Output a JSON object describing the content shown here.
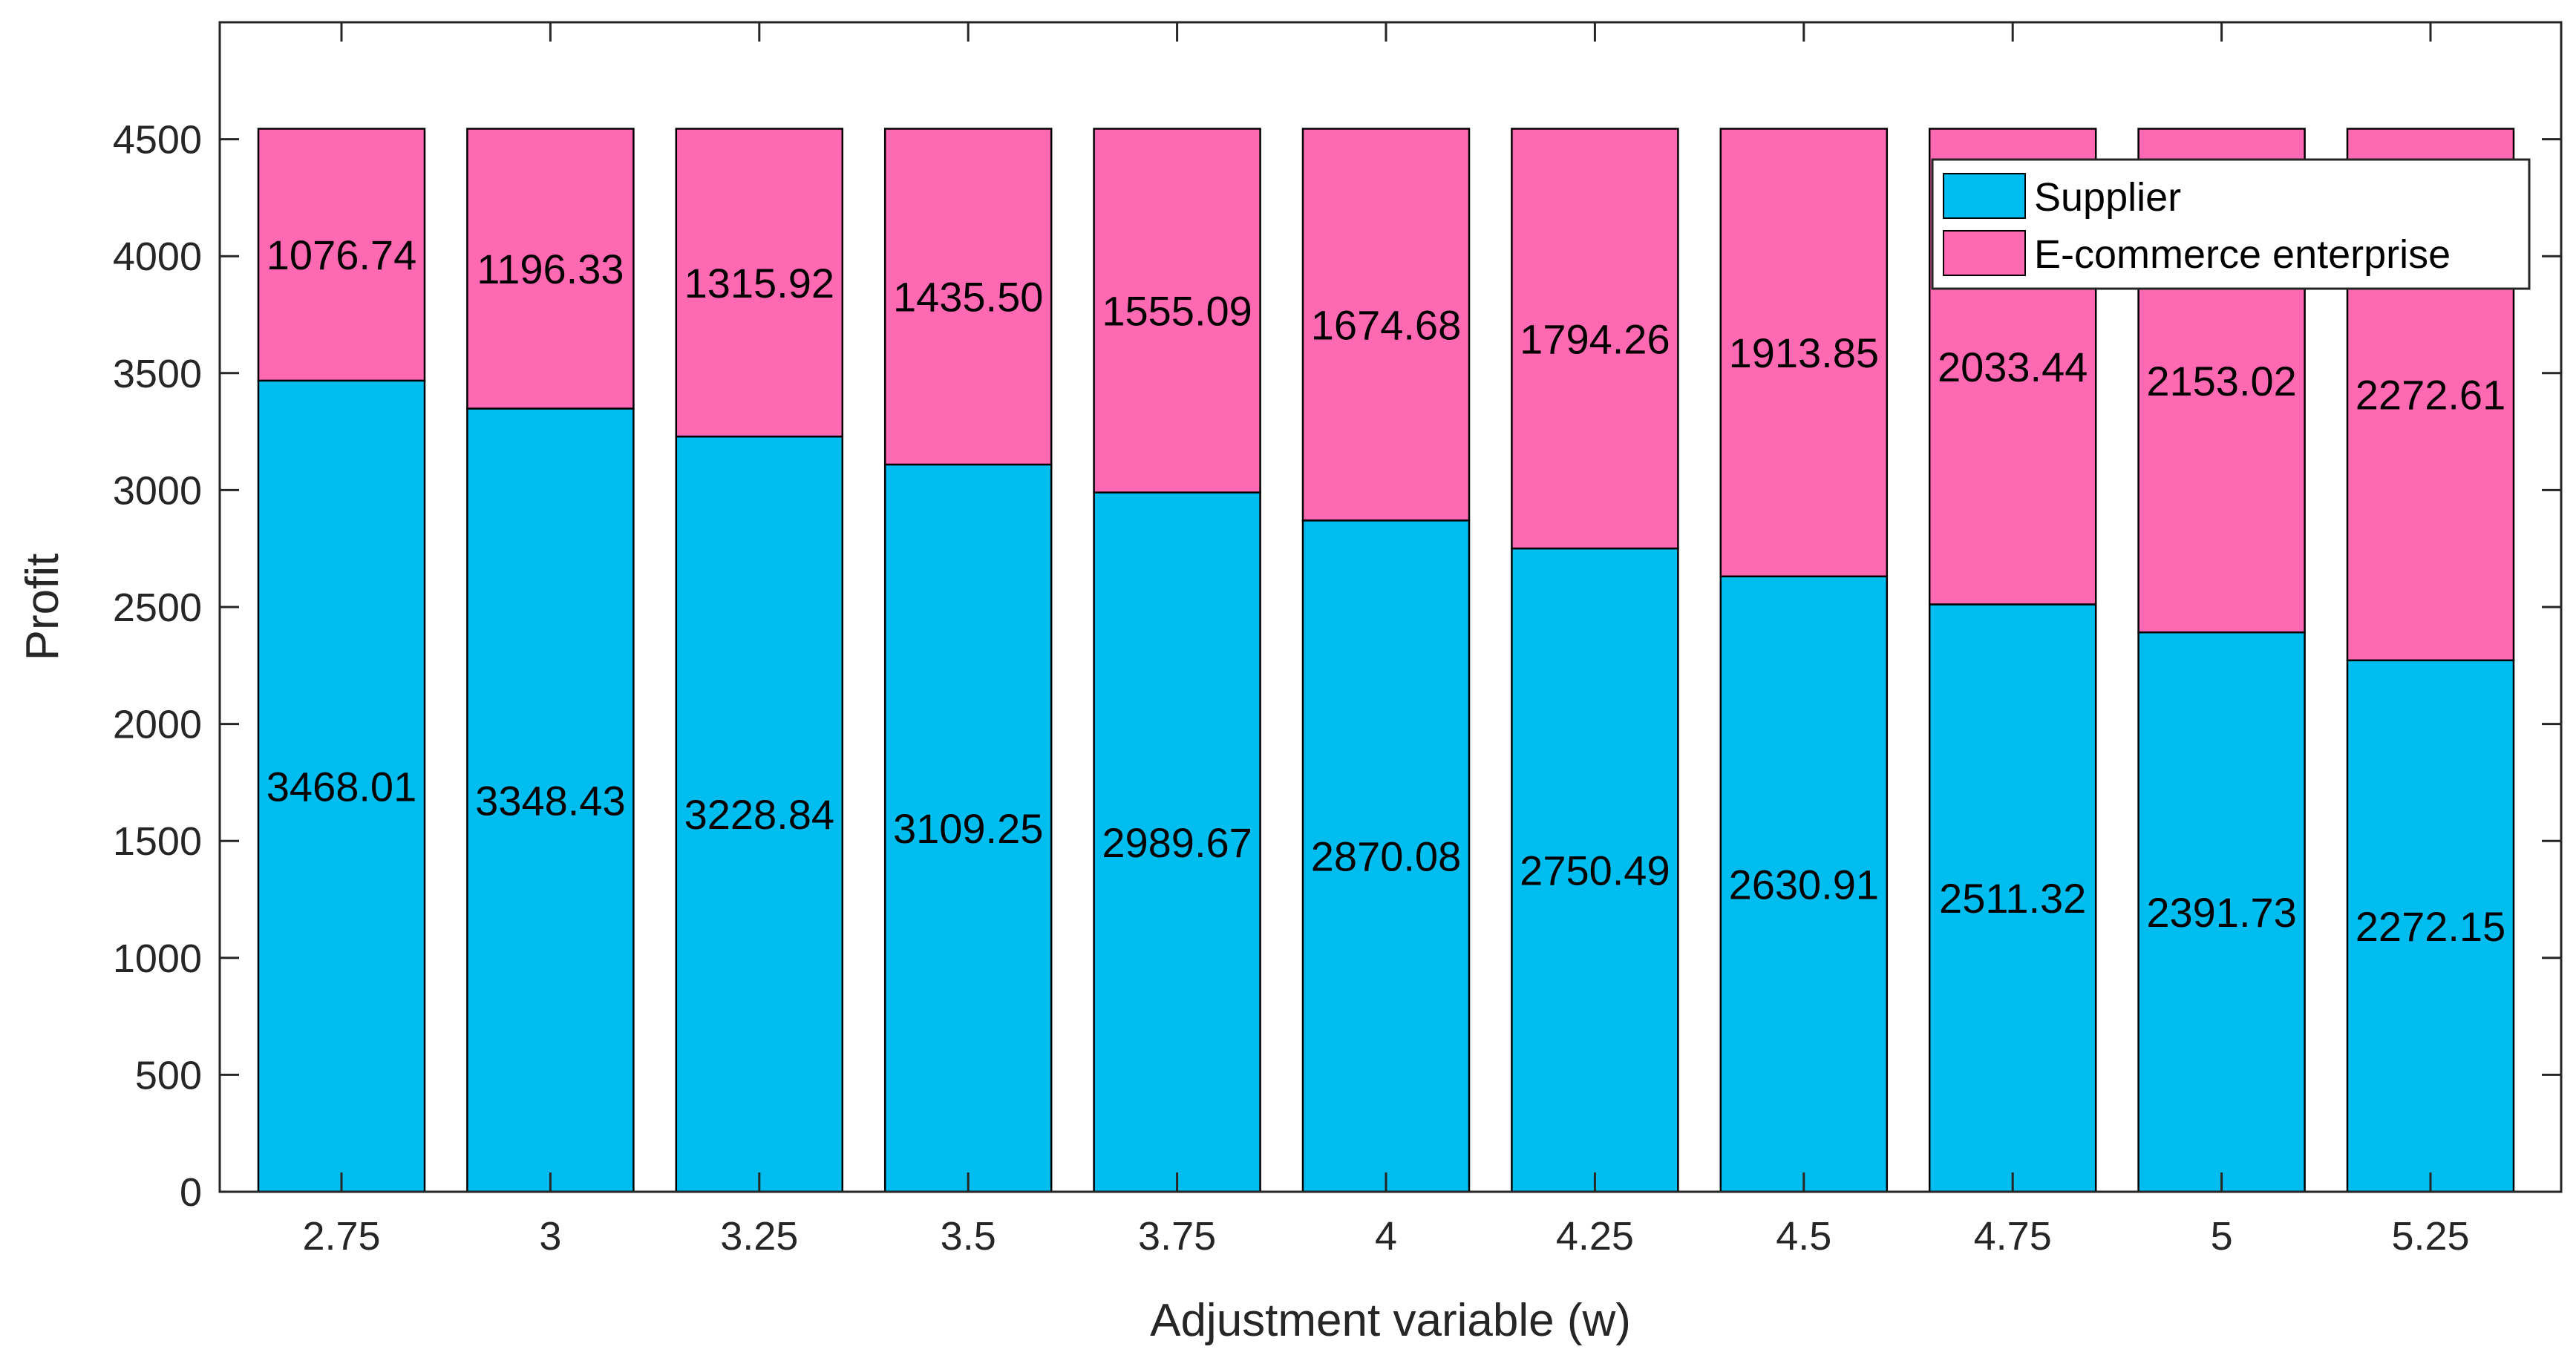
{
  "chart_data": {
    "type": "bar",
    "stacked": true,
    "title": "",
    "xlabel": "Adjustment variable (w)",
    "ylabel": "Profit",
    "categories": [
      "2.75",
      "3",
      "3.25",
      "3.5",
      "3.75",
      "4",
      "4.25",
      "4.5",
      "4.75",
      "5",
      "5.25"
    ],
    "ylim": [
      0,
      5000
    ],
    "yticks": [
      "0",
      "500",
      "1000",
      "1500",
      "2000",
      "2500",
      "3000",
      "3500",
      "4000",
      "4500"
    ],
    "series": [
      {
        "name": "Supplier",
        "color": "#00BDEF",
        "values": [
          3468.01,
          3348.43,
          3228.84,
          3109.25,
          2989.67,
          2870.08,
          2750.49,
          2630.91,
          2511.32,
          2391.73,
          2272.15
        ],
        "labels": [
          "3468.01",
          "3348.43",
          "3228.84",
          "3109.25",
          "2989.67",
          "2870.08",
          "2750.49",
          "2630.91",
          "2511.32",
          "2391.73",
          "2272.15"
        ]
      },
      {
        "name": "E-commerce enterprise",
        "color": "#FF69B4",
        "values": [
          1076.74,
          1196.33,
          1315.92,
          1435.5,
          1555.09,
          1674.68,
          1794.26,
          1913.85,
          2033.44,
          2153.02,
          2272.61
        ],
        "labels": [
          "1076.74",
          "1196.33",
          "1315.92",
          "1435.50",
          "1555.09",
          "1674.68",
          "1794.26",
          "1913.85",
          "2033.44",
          "2153.02",
          "2272.61"
        ]
      }
    ],
    "grid": false,
    "legend_position": "top-right"
  }
}
